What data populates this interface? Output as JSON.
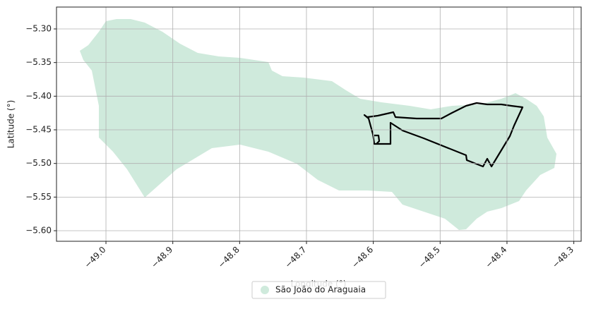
{
  "chart_data": {
    "type": "map",
    "xlabel": "Longitude (°)",
    "ylabel": "Latitude (°)",
    "xlim": [
      -49.074,
      -48.289
    ],
    "ylim": [
      -5.6157,
      -5.2675
    ],
    "xticks": [
      {
        "value": -49.0,
        "label": "−49.0"
      },
      {
        "value": -48.9,
        "label": "−48.9"
      },
      {
        "value": -48.8,
        "label": "−48.8"
      },
      {
        "value": -48.7,
        "label": "−48.7"
      },
      {
        "value": -48.6,
        "label": "−48.6"
      },
      {
        "value": -48.5,
        "label": "−48.5"
      },
      {
        "value": -48.4,
        "label": "−48.4"
      },
      {
        "value": -48.3,
        "label": "−48.3"
      }
    ],
    "yticks": [
      {
        "value": -5.3,
        "label": "−5.30"
      },
      {
        "value": -5.35,
        "label": "−5.35"
      },
      {
        "value": -5.4,
        "label": "−5.40"
      },
      {
        "value": -5.45,
        "label": "−5.45"
      },
      {
        "value": -5.5,
        "label": "−5.50"
      },
      {
        "value": -5.55,
        "label": "−5.55"
      },
      {
        "value": -5.6,
        "label": "−5.60"
      }
    ],
    "grid": true,
    "legend": "lower center",
    "series": [
      {
        "name": "São João do Araguaia",
        "color": "#cfeadc"
      }
    ]
  }
}
